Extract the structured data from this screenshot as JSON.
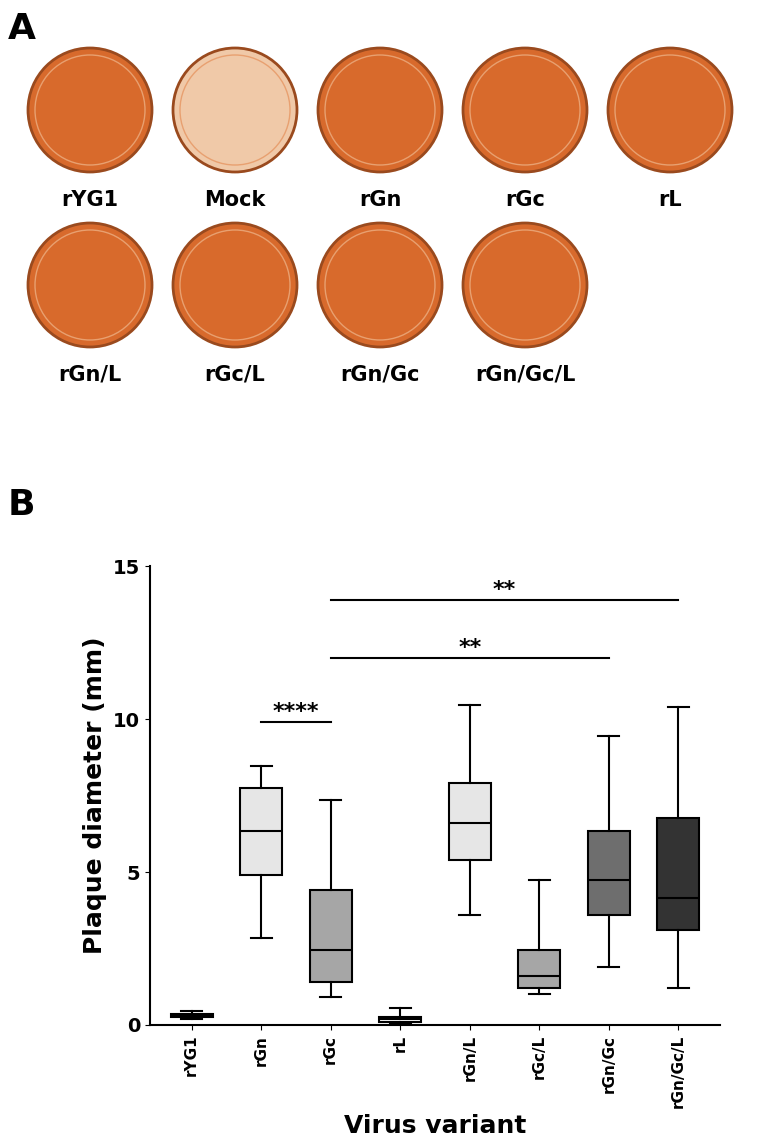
{
  "panel_a": {
    "panel_label": "A",
    "plates": [
      "rYG1",
      "Mock",
      "rGn",
      "rGc",
      "rL",
      "rGn/L",
      "rGc/L",
      "rGn/Gc",
      "rGn/Gc/L"
    ]
  },
  "chart_data": {
    "type": "box",
    "panel_label": "B",
    "x_label": "Virus variant",
    "y_label": "Plaque diameter (mm)",
    "categories": [
      "rYG1",
      "rGn",
      "rGc",
      "rL",
      "rGn/L",
      "rGc/L",
      "rGn/Gc",
      "rGn/Gc/L"
    ],
    "series": [
      {
        "name": "Plaque diameter",
        "whisker_low": [
          0.2,
          2.85,
          0.9,
          0.05,
          3.6,
          1.0,
          1.9,
          1.2
        ],
        "q1": [
          0.25,
          4.9,
          1.4,
          0.1,
          5.4,
          1.2,
          3.6,
          3.1
        ],
        "median": [
          0.3,
          6.35,
          2.45,
          0.2,
          6.6,
          1.6,
          4.75,
          4.15
        ],
        "q3": [
          0.35,
          7.75,
          4.4,
          0.25,
          7.9,
          2.45,
          6.35,
          6.75
        ],
        "whisker_high": [
          0.45,
          8.45,
          7.35,
          0.55,
          10.45,
          4.75,
          9.45,
          10.4
        ],
        "colors": [
          "#ffffff",
          "#e6e6e6",
          "#a6a6a6",
          "#ffffff",
          "#e6e6e6",
          "#a6a6a6",
          "#6e6e6e",
          "#333333"
        ]
      }
    ],
    "annotations": [
      {
        "text": "****",
        "from": "rGn",
        "to": "rGc",
        "y": 9.9
      },
      {
        "text": "**",
        "from": "rGc",
        "to": "rGn/Gc",
        "y": 12.0
      },
      {
        "text": "**",
        "from": "rGc",
        "to": "rGn/Gc/L",
        "y": 13.9
      }
    ],
    "ylim": [
      0,
      15
    ],
    "yticks": [
      0,
      5,
      10,
      15
    ],
    "grid": false
  }
}
